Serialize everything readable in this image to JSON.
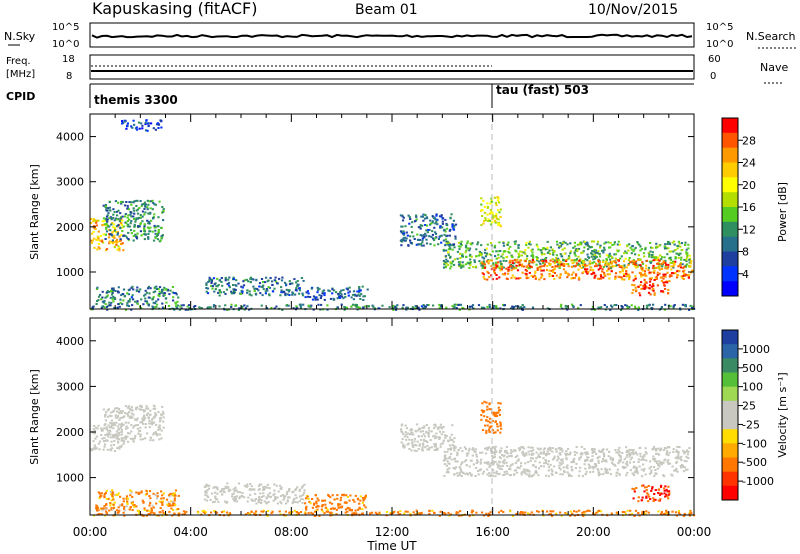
{
  "header": {
    "station": "Kapuskasing (fitACF)",
    "beam": "Beam 01",
    "date": "10/Nov/2015"
  },
  "noise_panel": {
    "left_label": "N.Sky",
    "left_ticks": [
      "10^5",
      "10^0"
    ],
    "right_label": "N.Search",
    "right_ticks": [
      "10^5",
      "10^0"
    ]
  },
  "freq_panel": {
    "left_label_1": "Freq.",
    "left_label_2": "[MHz]",
    "left_ticks": [
      "18",
      "8"
    ],
    "right_label": "Nave",
    "right_ticks": [
      "60",
      "0"
    ]
  },
  "cpid": {
    "label": "CPID",
    "modes": [
      {
        "name": "themis 3300",
        "start_hour": 0
      },
      {
        "name": "tau (fast) 503",
        "start_hour": 16
      }
    ]
  },
  "chart_data": [
    {
      "type": "heatmap",
      "panel": "power",
      "ylabel": "Slant Range [km]",
      "yticks": [
        "4000",
        "3000",
        "2000",
        "1000"
      ],
      "ylim": [
        180,
        4500
      ],
      "colorbar": {
        "label": "Power [dB]",
        "ticks": [
          "28",
          "24",
          "20",
          "16",
          "12",
          "8",
          "4"
        ],
        "colors": [
          "#ff0000",
          "#ff5500",
          "#ff9900",
          "#ffcc00",
          "#ffff00",
          "#b4dd00",
          "#55cc22",
          "#2f8f60",
          "#27708c",
          "#1e3f9f",
          "#0033ff",
          "#0000ff"
        ]
      },
      "regions": [
        {
          "x": [
            0.0,
            1.3
          ],
          "y": [
            1500,
            2200
          ],
          "level": 22
        },
        {
          "x": [
            0.5,
            2.9
          ],
          "y": [
            1700,
            2600
          ],
          "level": 10
        },
        {
          "x": [
            0.2,
            3.5
          ],
          "y": [
            300,
            700
          ],
          "level": 9
        },
        {
          "x": [
            4.5,
            8.5
          ],
          "y": [
            500,
            900
          ],
          "level": 8
        },
        {
          "x": [
            8.5,
            11.0
          ],
          "y": [
            400,
            700
          ],
          "level": 7
        },
        {
          "x": [
            12.3,
            14.5
          ],
          "y": [
            1600,
            2300
          ],
          "level": 8
        },
        {
          "x": [
            14.0,
            23.8
          ],
          "y": [
            1100,
            1700
          ],
          "level": 13
        },
        {
          "x": [
            15.5,
            23.9
          ],
          "y": [
            850,
            1300
          ],
          "level": 26
        },
        {
          "x": [
            21.5,
            23.0
          ],
          "y": [
            500,
            850
          ],
          "level": 28
        },
        {
          "x": [
            15.5,
            16.3
          ],
          "y": [
            2000,
            2700
          ],
          "level": 18
        },
        {
          "x": [
            1.2,
            2.8
          ],
          "y": [
            4150,
            4400
          ],
          "level": 5
        },
        {
          "x": [
            0.0,
            24.0
          ],
          "y": [
            180,
            300
          ],
          "level": 9
        }
      ]
    },
    {
      "type": "heatmap",
      "panel": "velocity",
      "ylabel": "Slant Range [km]",
      "yticks": [
        "4000",
        "3000",
        "2000",
        "1000"
      ],
      "ylim": [
        180,
        4500
      ],
      "colorbar": {
        "label": "Velocity [m s⁻¹]",
        "ticks": [
          "1000",
          "500",
          "100",
          "25",
          "-25",
          "-100",
          "-500",
          "-1000"
        ],
        "colors": [
          "#1e3f9f",
          "#2b65a8",
          "#3a8a64",
          "#56bf3a",
          "#9fd852",
          "#c8c8c0",
          "#c8c8c0",
          "#ffdd00",
          "#ffaa00",
          "#ff7700",
          "#ff3300",
          "#ff0000"
        ]
      },
      "regions": [
        {
          "x": [
            0.0,
            1.3
          ],
          "y": [
            1600,
            2200
          ],
          "velocity": 0
        },
        {
          "x": [
            0.5,
            2.9
          ],
          "y": [
            1800,
            2600
          ],
          "velocity": 0
        },
        {
          "x": [
            0.2,
            3.5
          ],
          "y": [
            300,
            750
          ],
          "velocity": -150
        },
        {
          "x": [
            4.5,
            8.5
          ],
          "y": [
            450,
            900
          ],
          "velocity": 0
        },
        {
          "x": [
            8.5,
            11.0
          ],
          "y": [
            300,
            650
          ],
          "velocity": -200
        },
        {
          "x": [
            12.3,
            14.5
          ],
          "y": [
            1600,
            2200
          ],
          "velocity": 0
        },
        {
          "x": [
            14.0,
            23.8
          ],
          "y": [
            1050,
            1700
          ],
          "velocity": 0
        },
        {
          "x": [
            21.5,
            23.0
          ],
          "y": [
            500,
            850
          ],
          "velocity": -500
        },
        {
          "x": [
            15.5,
            16.3
          ],
          "y": [
            2000,
            2700
          ],
          "velocity": -300
        },
        {
          "x": [
            0.0,
            24.0
          ],
          "y": [
            180,
            300
          ],
          "velocity": -200
        }
      ]
    }
  ],
  "x_axis": {
    "ticks": [
      "00:00",
      "04:00",
      "08:00",
      "12:00",
      "16:00",
      "20:00",
      "00:00"
    ],
    "title": "Time UT",
    "range_hours": [
      0,
      24
    ]
  }
}
